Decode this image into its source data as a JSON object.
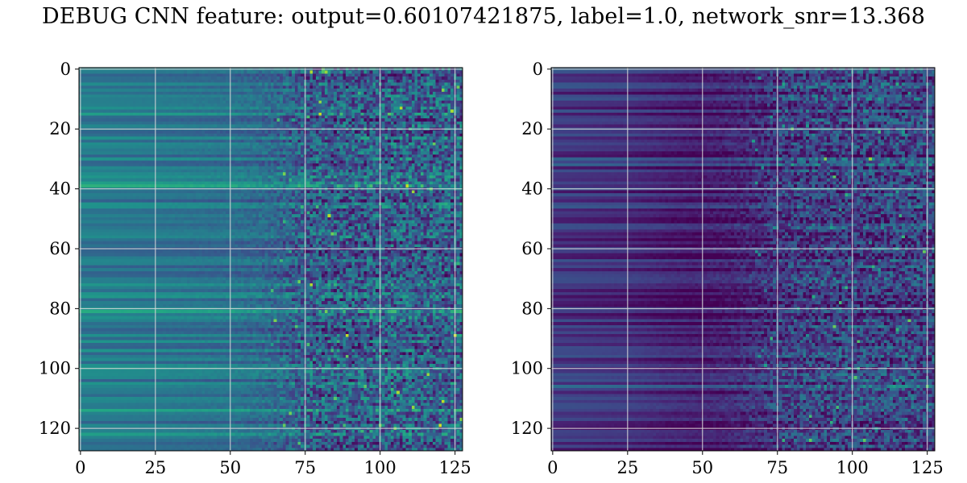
{
  "title": "DEBUG CNN feature: output=0.60107421875, label=1.0, network_snr=13.368",
  "colors": {
    "colormap": "viridis",
    "grid": "#d9d9d9",
    "axes": "#000000",
    "background": "#ffffff"
  },
  "chart_data": [
    {
      "type": "heatmap",
      "title": "",
      "xlabel": "",
      "ylabel": "",
      "shape": [
        128,
        128
      ],
      "xlim": [
        -0.5,
        127.5
      ],
      "ylim": [
        127.5,
        -0.5
      ],
      "x_ticks": [
        0,
        25,
        50,
        75,
        100,
        125
      ],
      "x_tick_labels": [
        "0",
        "25",
        "50",
        "75",
        "100",
        "125"
      ],
      "y_ticks": [
        0,
        20,
        40,
        60,
        80,
        100,
        120
      ],
      "y_tick_labels": [
        "0",
        "20",
        "40",
        "60",
        "80",
        "100",
        "120"
      ],
      "grid": true,
      "colormap": "viridis",
      "column_profile": {
        "x": [
          0,
          25,
          50,
          60,
          70,
          75,
          90,
          110,
          127
        ],
        "mean": [
          0.42,
          0.4,
          0.38,
          0.36,
          0.32,
          0.3,
          0.3,
          0.31,
          0.31
        ],
        "noise": [
          0.0,
          0.01,
          0.03,
          0.07,
          0.15,
          0.22,
          0.24,
          0.24,
          0.24
        ]
      }
    },
    {
      "type": "heatmap",
      "title": "",
      "xlabel": "",
      "ylabel": "",
      "shape": [
        128,
        128
      ],
      "xlim": [
        -0.5,
        127.5
      ],
      "ylim": [
        127.5,
        -0.5
      ],
      "x_ticks": [
        0,
        25,
        50,
        75,
        100,
        125
      ],
      "x_tick_labels": [
        "0",
        "25",
        "50",
        "75",
        "100",
        "125"
      ],
      "y_ticks": [
        0,
        20,
        40,
        60,
        80,
        100,
        120
      ],
      "y_tick_labels": [
        "0",
        "20",
        "40",
        "60",
        "80",
        "100",
        "120"
      ],
      "grid": true,
      "colormap": "viridis",
      "column_profile": {
        "x": [
          0,
          25,
          40,
          50,
          60,
          70,
          75,
          90,
          110,
          127
        ],
        "mean": [
          0.16,
          0.13,
          0.09,
          0.07,
          0.09,
          0.13,
          0.17,
          0.2,
          0.2,
          0.2
        ],
        "noise": [
          0.0,
          0.01,
          0.02,
          0.03,
          0.06,
          0.12,
          0.17,
          0.2,
          0.2,
          0.2
        ]
      }
    }
  ]
}
